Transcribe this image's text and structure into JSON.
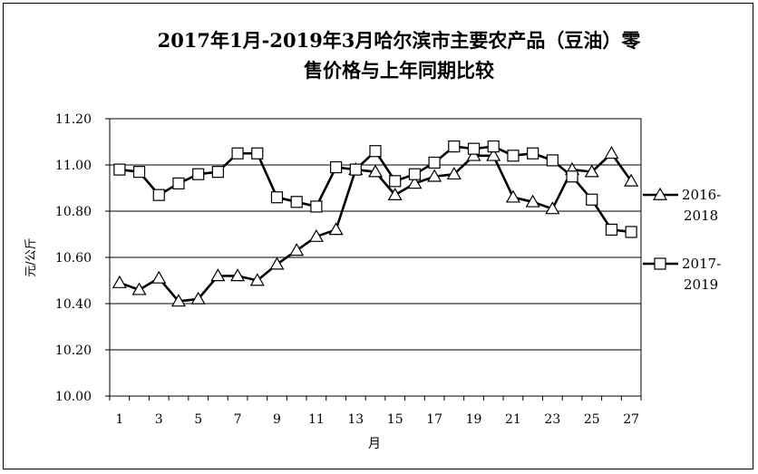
{
  "chart_data": {
    "type": "line",
    "title_line1": "2017年1月-2019年3月哈尔滨市主要农产品（豆油）零",
    "title_line2": "售价格与上年同期比较",
    "xlabel": "月",
    "ylabel": "元/公斤",
    "ylim": [
      10.0,
      11.2
    ],
    "y_ticks": [
      "10.00",
      "10.20",
      "10.40",
      "10.60",
      "10.80",
      "11.00",
      "11.20"
    ],
    "x_ticks": [
      "1",
      "3",
      "5",
      "7",
      "9",
      "11",
      "13",
      "15",
      "17",
      "19",
      "21",
      "23",
      "25",
      "27"
    ],
    "x": [
      1,
      2,
      3,
      4,
      5,
      6,
      7,
      8,
      9,
      10,
      11,
      12,
      13,
      14,
      15,
      16,
      17,
      18,
      19,
      20,
      21,
      22,
      23,
      24,
      25,
      26,
      27
    ],
    "grid": true,
    "legend_position": "right",
    "series": [
      {
        "name": "2016-2018",
        "legend_line1": "2016-",
        "legend_line2": "2018",
        "marker": "triangle",
        "values": [
          10.49,
          10.46,
          10.51,
          10.41,
          10.42,
          10.52,
          10.52,
          10.5,
          10.57,
          10.63,
          10.69,
          10.72,
          10.98,
          10.97,
          10.87,
          10.92,
          10.95,
          10.96,
          11.04,
          11.04,
          10.86,
          10.84,
          10.81,
          10.98,
          10.97,
          11.05,
          10.93
        ]
      },
      {
        "name": "2017-2019",
        "legend_line1": "2017-",
        "legend_line2": "2019",
        "marker": "square",
        "values": [
          10.98,
          10.97,
          10.87,
          10.92,
          10.96,
          10.97,
          11.05,
          11.05,
          10.86,
          10.84,
          10.82,
          10.99,
          10.98,
          11.06,
          10.93,
          10.96,
          11.01,
          11.08,
          11.07,
          11.08,
          11.04,
          11.05,
          11.02,
          10.95,
          10.85,
          10.72,
          10.71
        ]
      }
    ]
  }
}
